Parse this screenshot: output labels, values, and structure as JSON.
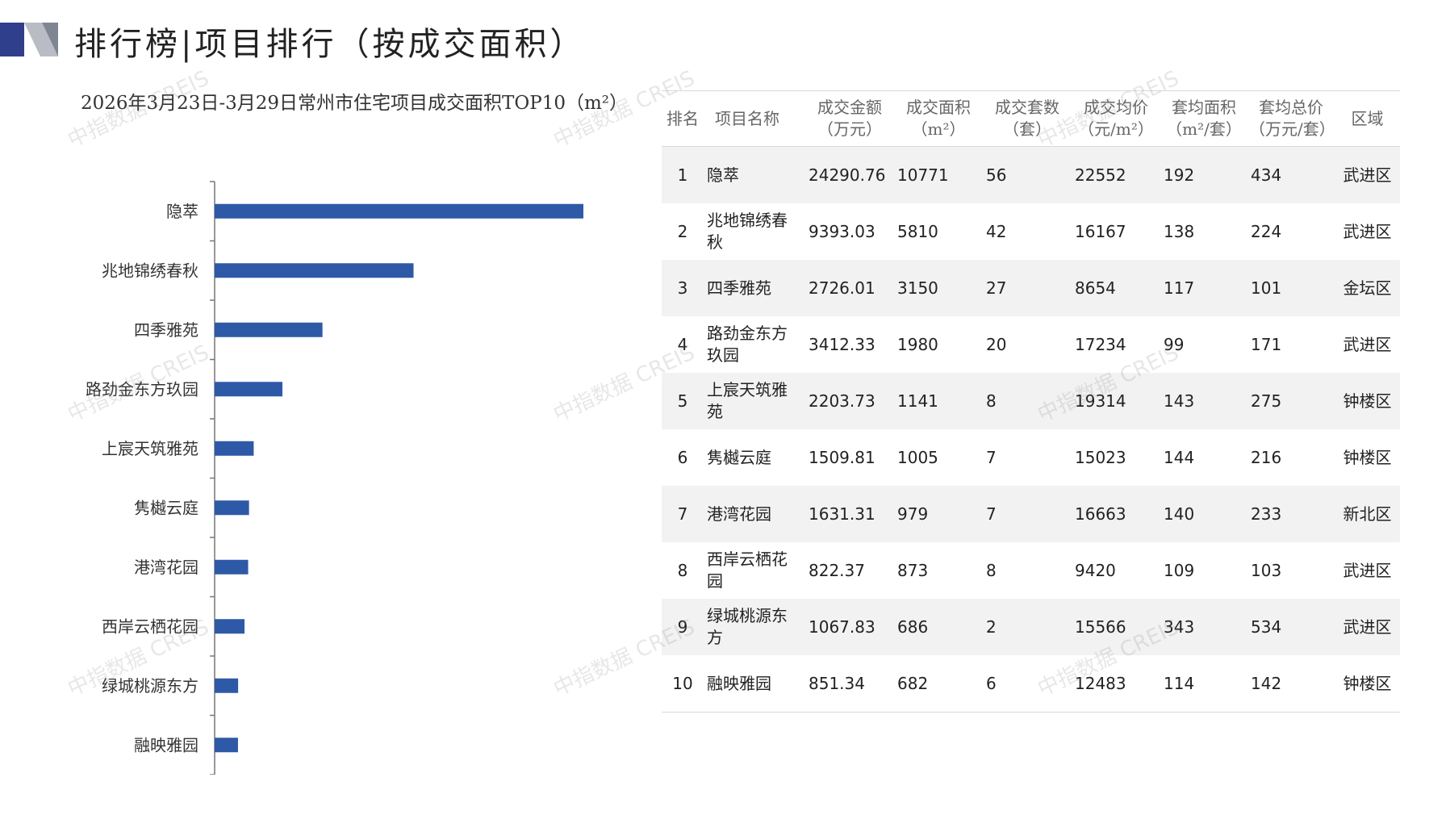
{
  "header": {
    "title": "排行榜|项目排行（按成交面积）"
  },
  "chart_title": "2026年3月23日-3月29日常州市住宅项目成交面积TOP10（m²）",
  "watermark": "中指数据 CREIS",
  "colors": {
    "bar": "#2E59A7",
    "header_accent": "#2F3F8C"
  },
  "chart_data": {
    "type": "bar",
    "orientation": "horizontal",
    "title": "2026年3月23日-3月29日常州市住宅项目成交面积TOP10（m²）",
    "categories": [
      "隐萃",
      "兆地锦绣春秋",
      "四季雅苑",
      "路劲金东方玖园",
      "上宸天筑雅苑",
      "隽樾云庭",
      "港湾花园",
      "西岸云栖花园",
      "绿城桃源东方",
      "融映雅园"
    ],
    "values": [
      10771,
      5810,
      3150,
      1980,
      1141,
      1005,
      979,
      873,
      686,
      682
    ],
    "xlim": [
      0,
      13000
    ],
    "grid": false,
    "legend": "none"
  },
  "table": {
    "headers": [
      "排名",
      "项目名称",
      "成交金额\n（万元）",
      "成交面积\n（m²）",
      "成交套数\n（套）",
      "成交均价\n（元/m²）",
      "套均面积\n（m²/套）",
      "套均总价\n（万元/套）",
      "区域"
    ],
    "rows": [
      [
        "1",
        "隐萃",
        "24290.76",
        "10771",
        "56",
        "22552",
        "192",
        "434",
        "武进区"
      ],
      [
        "2",
        "兆地锦绣春秋",
        "9393.03",
        "5810",
        "42",
        "16167",
        "138",
        "224",
        "武进区"
      ],
      [
        "3",
        "四季雅苑",
        "2726.01",
        "3150",
        "27",
        "8654",
        "117",
        "101",
        "金坛区"
      ],
      [
        "4",
        "路劲金东方玖园",
        "3412.33",
        "1980",
        "20",
        "17234",
        "99",
        "171",
        "武进区"
      ],
      [
        "5",
        "上宸天筑雅苑",
        "2203.73",
        "1141",
        "8",
        "19314",
        "143",
        "275",
        "钟楼区"
      ],
      [
        "6",
        "隽樾云庭",
        "1509.81",
        "1005",
        "7",
        "15023",
        "144",
        "216",
        "钟楼区"
      ],
      [
        "7",
        "港湾花园",
        "1631.31",
        "979",
        "7",
        "16663",
        "140",
        "233",
        "新北区"
      ],
      [
        "8",
        "西岸云栖花园",
        "822.37",
        "873",
        "8",
        "9420",
        "109",
        "103",
        "武进区"
      ],
      [
        "9",
        "绿城桃源东方",
        "1067.83",
        "686",
        "2",
        "15566",
        "343",
        "534",
        "武进区"
      ],
      [
        "10",
        "融映雅园",
        "851.34",
        "682",
        "6",
        "12483",
        "114",
        "142",
        "钟楼区"
      ]
    ]
  }
}
